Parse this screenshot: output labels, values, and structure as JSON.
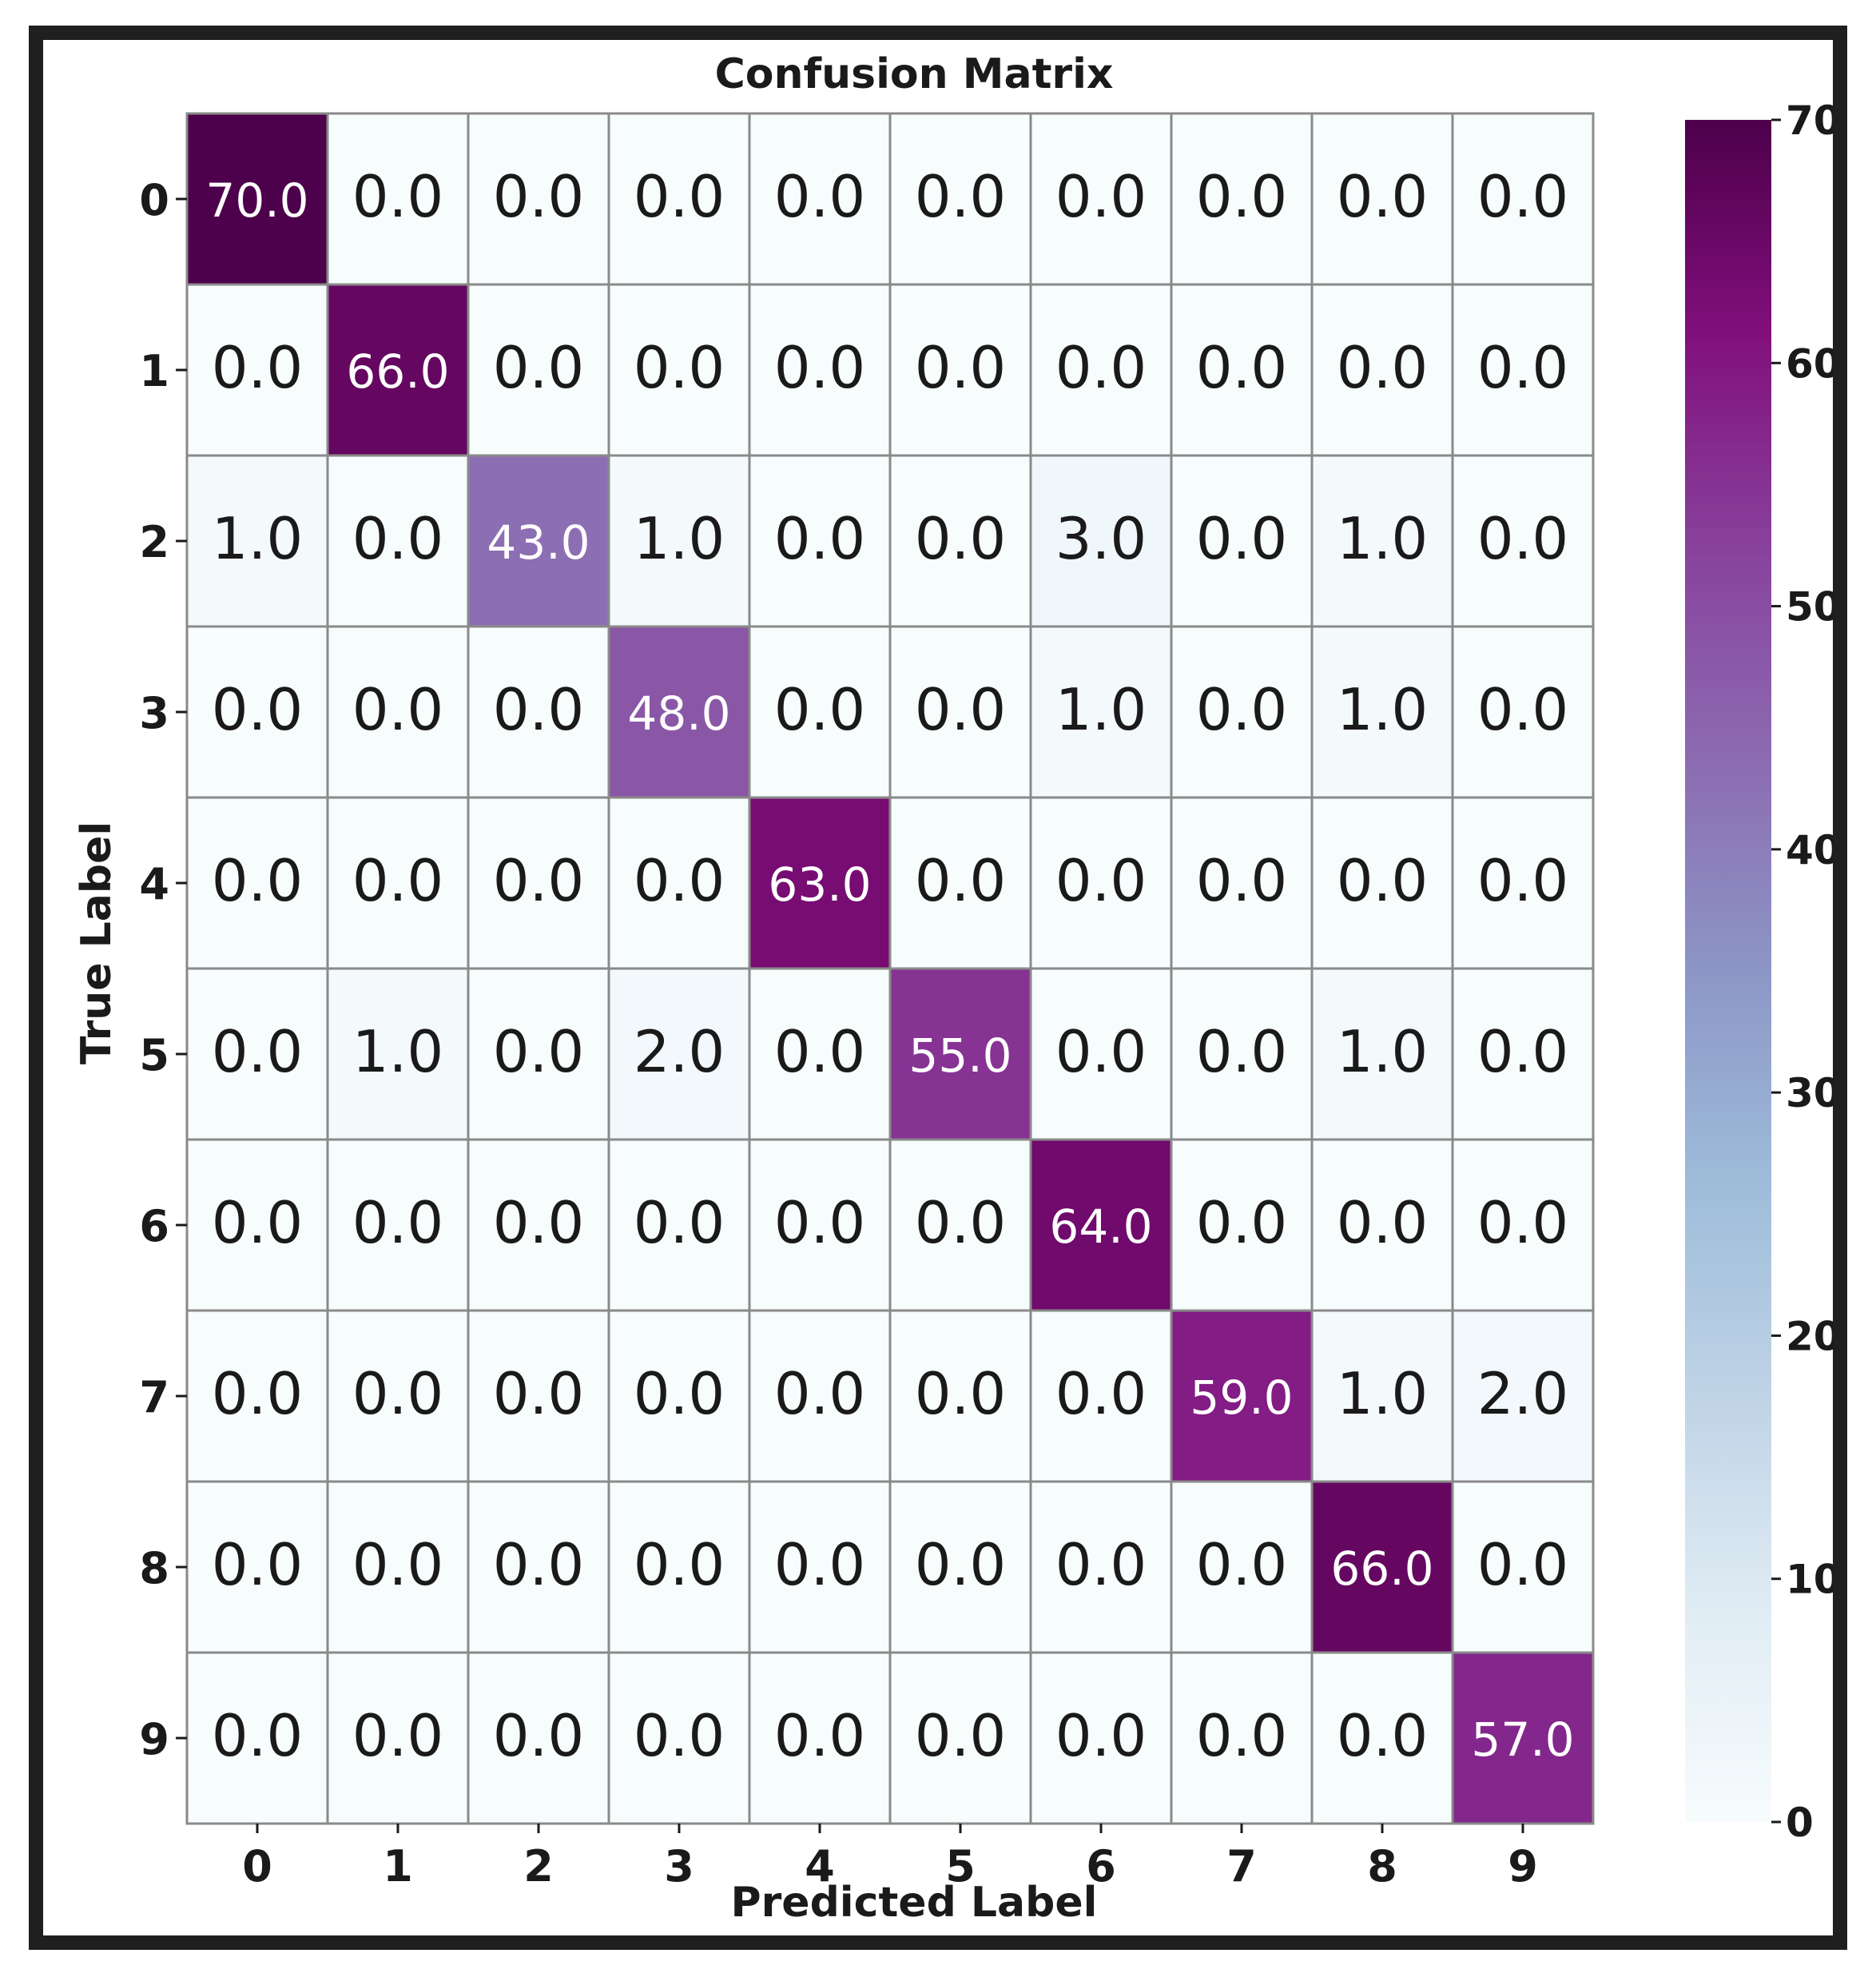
{
  "chart_data": {
    "type": "heatmap",
    "title": "Confusion Matrix",
    "xlabel": "Predicted Label",
    "ylabel": "True Label",
    "x_categories": [
      "0",
      "1",
      "2",
      "3",
      "4",
      "5",
      "6",
      "7",
      "8",
      "9"
    ],
    "y_categories": [
      "0",
      "1",
      "2",
      "3",
      "4",
      "5",
      "6",
      "7",
      "8",
      "9"
    ],
    "values": [
      [
        70,
        0,
        0,
        0,
        0,
        0,
        0,
        0,
        0,
        0
      ],
      [
        0,
        66,
        0,
        0,
        0,
        0,
        0,
        0,
        0,
        0
      ],
      [
        1,
        0,
        43,
        1,
        0,
        0,
        3,
        0,
        1,
        0
      ],
      [
        0,
        0,
        0,
        48,
        0,
        0,
        1,
        0,
        1,
        0
      ],
      [
        0,
        0,
        0,
        0,
        63,
        0,
        0,
        0,
        0,
        0
      ],
      [
        0,
        1,
        0,
        2,
        0,
        55,
        0,
        0,
        1,
        0
      ],
      [
        0,
        0,
        0,
        0,
        0,
        0,
        64,
        0,
        0,
        0
      ],
      [
        0,
        0,
        0,
        0,
        0,
        0,
        0,
        59,
        1,
        2
      ],
      [
        0,
        0,
        0,
        0,
        0,
        0,
        0,
        0,
        66,
        0
      ],
      [
        0,
        0,
        0,
        0,
        0,
        0,
        0,
        0,
        0,
        57
      ]
    ],
    "cell_labels": [
      [
        "70.0",
        "0.0",
        "0.0",
        "0.0",
        "0.0",
        "0.0",
        "0.0",
        "0.0",
        "0.0",
        "0.0"
      ],
      [
        "0.0",
        "66.0",
        "0.0",
        "0.0",
        "0.0",
        "0.0",
        "0.0",
        "0.0",
        "0.0",
        "0.0"
      ],
      [
        "1.0",
        "0.0",
        "43.0",
        "1.0",
        "0.0",
        "0.0",
        "3.0",
        "0.0",
        "1.0",
        "0.0"
      ],
      [
        "0.0",
        "0.0",
        "0.0",
        "48.0",
        "0.0",
        "0.0",
        "1.0",
        "0.0",
        "1.0",
        "0.0"
      ],
      [
        "0.0",
        "0.0",
        "0.0",
        "0.0",
        "63.0",
        "0.0",
        "0.0",
        "0.0",
        "0.0",
        "0.0"
      ],
      [
        "0.0",
        "1.0",
        "0.0",
        "2.0",
        "0.0",
        "55.0",
        "0.0",
        "0.0",
        "1.0",
        "0.0"
      ],
      [
        "0.0",
        "0.0",
        "0.0",
        "0.0",
        "0.0",
        "0.0",
        "64.0",
        "0.0",
        "0.0",
        "0.0"
      ],
      [
        "0.0",
        "0.0",
        "0.0",
        "0.0",
        "0.0",
        "0.0",
        "0.0",
        "59.0",
        "1.0",
        "2.0"
      ],
      [
        "0.0",
        "0.0",
        "0.0",
        "0.0",
        "0.0",
        "0.0",
        "0.0",
        "0.0",
        "66.0",
        "0.0"
      ],
      [
        "0.0",
        "0.0",
        "0.0",
        "0.0",
        "0.0",
        "0.0",
        "0.0",
        "0.0",
        "0.0",
        "57.0"
      ]
    ],
    "colorbar": {
      "range": [
        0,
        70
      ],
      "ticks": [
        0,
        10,
        20,
        30,
        40,
        50,
        60,
        70
      ],
      "tick_labels": [
        "0",
        "10",
        "20",
        "30",
        "40",
        "50",
        "60",
        "70"
      ]
    },
    "colormap": "BuPu",
    "colormap_stops": [
      "#f7fcfd",
      "#e0ecf4",
      "#bfd3e6",
      "#9ebcda",
      "#8c96c6",
      "#8c6bb1",
      "#88419d",
      "#810f7c",
      "#4d004b"
    ],
    "grid": true,
    "legend": "colorbar-right"
  }
}
